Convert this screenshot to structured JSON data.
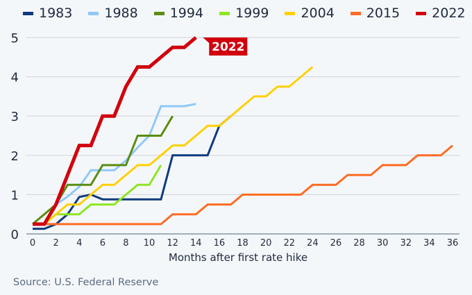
{
  "chart_data": {
    "type": "line",
    "title": "",
    "xlabel": "Months after first rate hike",
    "ylabel": "",
    "xlim": [
      0,
      36
    ],
    "ylim": [
      0,
      5
    ],
    "x_ticks": [
      0,
      2,
      4,
      6,
      8,
      10,
      12,
      14,
      16,
      18,
      20,
      22,
      24,
      26,
      28,
      30,
      32,
      34,
      36
    ],
    "y_ticks": [
      0,
      1,
      2,
      3,
      4,
      5
    ],
    "grid": true,
    "legend_position": "top",
    "series": [
      {
        "name": "1983",
        "color": "#0f3a7d",
        "x": [
          0,
          1,
          2,
          3,
          4,
          5,
          6,
          7,
          8,
          9,
          10,
          11,
          12,
          13,
          14,
          15,
          16,
          17
        ],
        "values": [
          0.13,
          0.13,
          0.25,
          0.5,
          0.94,
          1.0,
          0.88,
          0.88,
          0.88,
          0.88,
          0.88,
          0.88,
          2.0,
          2.0,
          2.0,
          2.0,
          2.75,
          3.0
        ]
      },
      {
        "name": "1988",
        "color": "#90c8f8",
        "x": [
          2,
          3,
          4,
          5,
          6,
          7,
          8,
          9,
          10,
          11,
          12,
          13,
          14
        ],
        "values": [
          0.75,
          0.95,
          1.2,
          1.62,
          1.62,
          1.62,
          1.87,
          2.2,
          2.5,
          3.25,
          3.25,
          3.25,
          3.31
        ]
      },
      {
        "name": "1994",
        "color": "#5a8c10",
        "x": [
          0,
          1,
          2,
          3,
          4,
          5,
          6,
          7,
          8,
          9,
          10,
          11,
          12
        ],
        "values": [
          0.25,
          0.5,
          0.75,
          1.25,
          1.25,
          1.25,
          1.75,
          1.75,
          1.75,
          2.5,
          2.5,
          2.5,
          3.0
        ]
      },
      {
        "name": "1999",
        "color": "#8ee622",
        "x": [
          1,
          2,
          3,
          4,
          5,
          6,
          7,
          8,
          9,
          10,
          11
        ],
        "values": [
          0.25,
          0.5,
          0.5,
          0.5,
          0.75,
          0.75,
          0.75,
          1.0,
          1.25,
          1.25,
          1.75
        ]
      },
      {
        "name": "2004",
        "color": "#ffd000",
        "x": [
          1,
          2,
          3,
          4,
          5,
          6,
          7,
          8,
          9,
          10,
          11,
          12,
          13,
          14,
          15,
          16,
          17,
          18,
          19,
          20,
          21,
          22,
          23,
          24
        ],
        "values": [
          0.25,
          0.5,
          0.75,
          0.75,
          1.0,
          1.25,
          1.25,
          1.5,
          1.75,
          1.75,
          2.0,
          2.25,
          2.25,
          2.5,
          2.75,
          2.75,
          3.0,
          3.25,
          3.5,
          3.5,
          3.75,
          3.75,
          4.0,
          4.25
        ]
      },
      {
        "name": "2015",
        "color": "#ff6b22",
        "x": [
          0,
          1,
          2,
          3,
          4,
          5,
          6,
          7,
          8,
          9,
          10,
          11,
          12,
          13,
          14,
          15,
          16,
          17,
          18,
          19,
          20,
          21,
          22,
          23,
          24,
          25,
          26,
          27,
          28,
          29,
          30,
          31,
          32,
          33,
          34,
          35,
          36
        ],
        "values": [
          0.25,
          0.25,
          0.25,
          0.25,
          0.25,
          0.25,
          0.25,
          0.25,
          0.25,
          0.25,
          0.25,
          0.25,
          0.5,
          0.5,
          0.5,
          0.75,
          0.75,
          0.75,
          1.0,
          1.0,
          1.0,
          1.0,
          1.0,
          1.0,
          1.25,
          1.25,
          1.25,
          1.5,
          1.5,
          1.5,
          1.75,
          1.75,
          1.75,
          2.0,
          2.0,
          2.0,
          2.25
        ]
      },
      {
        "name": "2022",
        "color": "#d1000d",
        "x": [
          0,
          1,
          2,
          3,
          4,
          5,
          6,
          7,
          8,
          9,
          10,
          11,
          12,
          13,
          14
        ],
        "values": [
          0.25,
          0.25,
          0.75,
          1.5,
          2.25,
          2.25,
          3.0,
          3.0,
          3.75,
          4.25,
          4.25,
          4.5,
          4.75,
          4.75,
          5.0
        ]
      }
    ],
    "annotations": [
      {
        "text": "2022",
        "series": "2022",
        "x": 14,
        "y": 5.0
      }
    ]
  },
  "source": "Source: U.S. Federal Reserve"
}
